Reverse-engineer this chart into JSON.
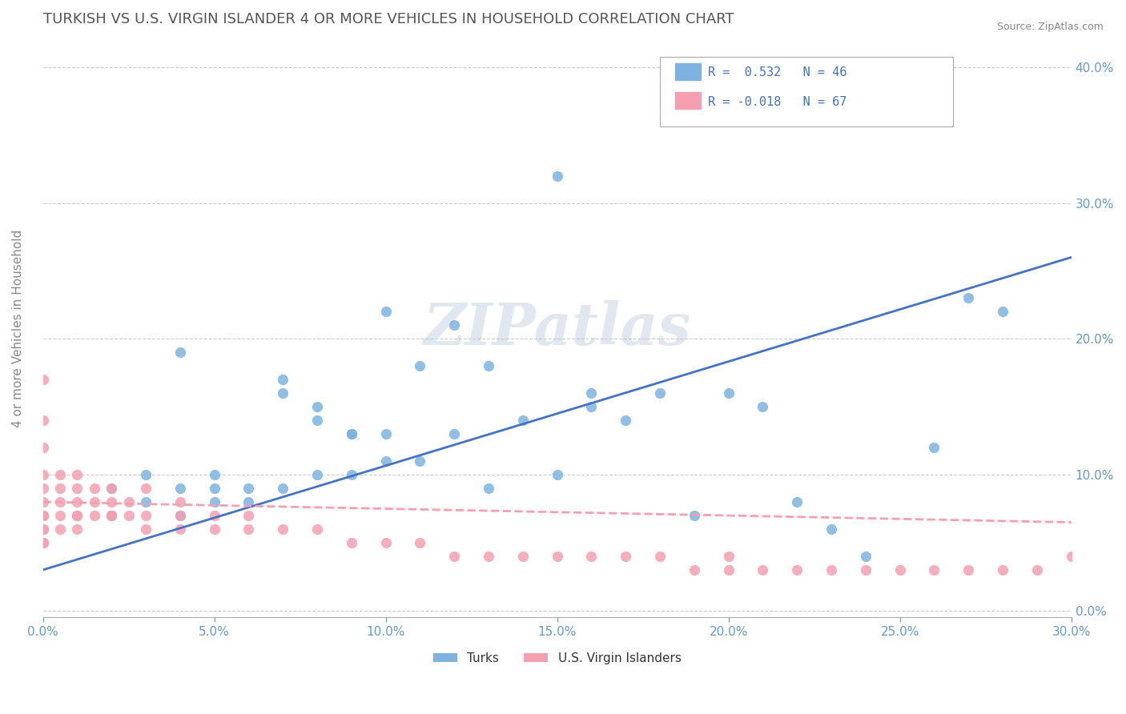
{
  "title": "TURKISH VS U.S. VIRGIN ISLANDER 4 OR MORE VEHICLES IN HOUSEHOLD CORRELATION CHART",
  "source": "Source: ZipAtlas.com",
  "xlabel": "",
  "ylabel": "4 or more Vehicles in Household",
  "xlim": [
    0.0,
    0.3
  ],
  "ylim": [
    -0.005,
    0.42
  ],
  "xticks": [
    0.0,
    0.05,
    0.1,
    0.15,
    0.2,
    0.25,
    0.3
  ],
  "yticks_right": [
    0.0,
    0.1,
    0.2,
    0.3,
    0.4
  ],
  "ytick_labels_right": [
    "0.0%",
    "10.0%",
    "20.0%",
    "30.0%",
    "40.0%"
  ],
  "xtick_labels": [
    "0.0%",
    "",
    "",
    "",
    "",
    "",
    "30.0%"
  ],
  "legend_R1": "R =  0.532",
  "legend_N1": "N = 46",
  "legend_R2": "R = -0.018",
  "legend_N2": "N = 67",
  "color_turks": "#7EB3E0",
  "color_virgin": "#F4A0B0",
  "color_title": "#555555",
  "color_axis_labels": "#6699CC",
  "watermark_text": "ZIPatlas",
  "watermark_color": "#AABBD0",
  "turks_x": [
    0.02,
    0.02,
    0.03,
    0.03,
    0.04,
    0.04,
    0.04,
    0.05,
    0.05,
    0.05,
    0.06,
    0.06,
    0.07,
    0.07,
    0.07,
    0.08,
    0.08,
    0.08,
    0.09,
    0.09,
    0.09,
    0.1,
    0.1,
    0.1,
    0.11,
    0.11,
    0.12,
    0.12,
    0.13,
    0.13,
    0.14,
    0.15,
    0.15,
    0.16,
    0.16,
    0.17,
    0.18,
    0.19,
    0.2,
    0.21,
    0.22,
    0.23,
    0.24,
    0.26,
    0.27,
    0.28
  ],
  "turks_y": [
    0.07,
    0.09,
    0.1,
    0.08,
    0.19,
    0.09,
    0.07,
    0.08,
    0.1,
    0.09,
    0.09,
    0.08,
    0.17,
    0.16,
    0.09,
    0.15,
    0.14,
    0.1,
    0.13,
    0.13,
    0.1,
    0.22,
    0.13,
    0.11,
    0.18,
    0.11,
    0.21,
    0.13,
    0.18,
    0.09,
    0.14,
    0.32,
    0.1,
    0.16,
    0.15,
    0.14,
    0.16,
    0.07,
    0.16,
    0.15,
    0.08,
    0.06,
    0.04,
    0.12,
    0.23,
    0.22
  ],
  "virgin_x": [
    0.0,
    0.0,
    0.0,
    0.0,
    0.0,
    0.0,
    0.0,
    0.0,
    0.0,
    0.0,
    0.0,
    0.0,
    0.005,
    0.005,
    0.005,
    0.005,
    0.005,
    0.01,
    0.01,
    0.01,
    0.01,
    0.01,
    0.01,
    0.015,
    0.015,
    0.015,
    0.02,
    0.02,
    0.02,
    0.02,
    0.025,
    0.025,
    0.03,
    0.03,
    0.03,
    0.04,
    0.04,
    0.04,
    0.05,
    0.05,
    0.06,
    0.06,
    0.07,
    0.08,
    0.09,
    0.1,
    0.11,
    0.12,
    0.13,
    0.14,
    0.15,
    0.16,
    0.17,
    0.18,
    0.19,
    0.2,
    0.21,
    0.22,
    0.23,
    0.24,
    0.25,
    0.26,
    0.27,
    0.28,
    0.29,
    0.3,
    0.2
  ],
  "virgin_y": [
    0.17,
    0.14,
    0.12,
    0.1,
    0.09,
    0.08,
    0.07,
    0.07,
    0.06,
    0.06,
    0.05,
    0.05,
    0.1,
    0.09,
    0.08,
    0.07,
    0.06,
    0.1,
    0.09,
    0.08,
    0.07,
    0.07,
    0.06,
    0.09,
    0.08,
    0.07,
    0.09,
    0.08,
    0.07,
    0.07,
    0.08,
    0.07,
    0.09,
    0.07,
    0.06,
    0.08,
    0.07,
    0.06,
    0.07,
    0.06,
    0.07,
    0.06,
    0.06,
    0.06,
    0.05,
    0.05,
    0.05,
    0.04,
    0.04,
    0.04,
    0.04,
    0.04,
    0.04,
    0.04,
    0.03,
    0.03,
    0.03,
    0.03,
    0.03,
    0.03,
    0.03,
    0.03,
    0.03,
    0.03,
    0.03,
    0.04,
    0.04
  ],
  "turks_trend_x": [
    0.0,
    0.3
  ],
  "turks_trend_y_start": 0.03,
  "turks_trend_y_end": 0.26,
  "virgin_trend_x": [
    0.0,
    0.3
  ],
  "virgin_trend_y_start": 0.08,
  "virgin_trend_y_end": 0.065
}
